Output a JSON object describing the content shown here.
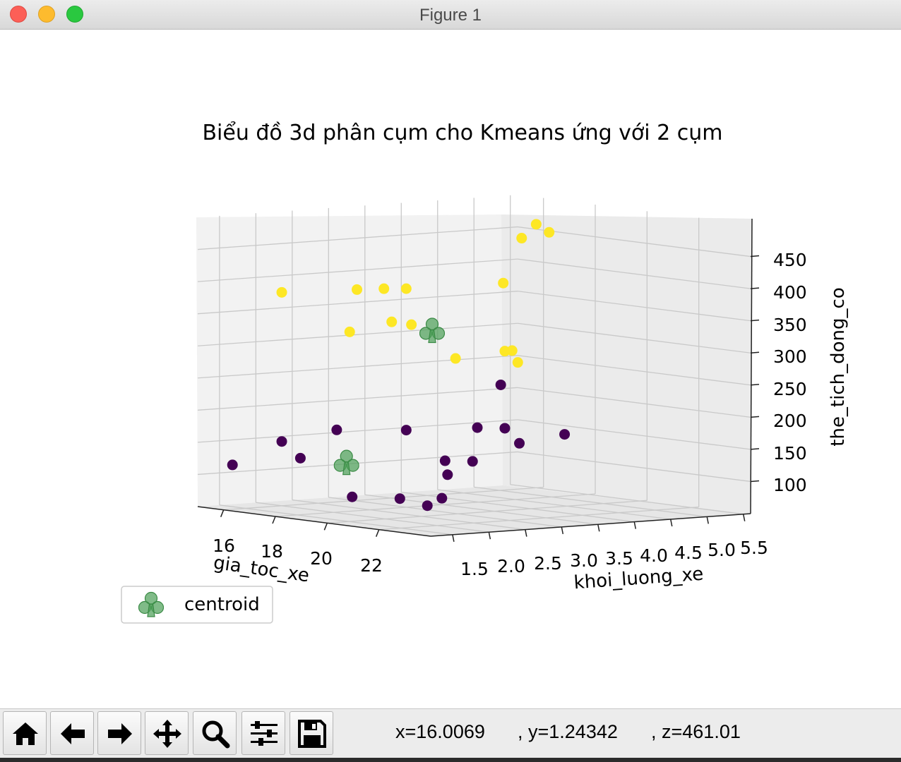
{
  "window": {
    "title": "Figure 1"
  },
  "colors": {
    "cluster_0": "#440154",
    "cluster_1": "#fde725",
    "centroid": "#4a9e55",
    "grid": "#c9c9c9",
    "pane": "#f2f2f2"
  },
  "chart_data": {
    "type": "scatter3d",
    "title": "Biểu đồ 3d phân cụm cho Kmeans ứng với 2 cụm",
    "xlabel": "gia_toc_xe",
    "ylabel": "khoi_luong_xe",
    "zlabel": "the_tich_dong_co",
    "x_ticks": [
      "16",
      "18",
      "20",
      "22"
    ],
    "y_ticks": [
      "1.5",
      "2.0",
      "2.5",
      "3.0",
      "3.5",
      "4.0",
      "4.5",
      "5.0",
      "5.5"
    ],
    "z_ticks": [
      "100",
      "150",
      "200",
      "250",
      "300",
      "350",
      "400",
      "450"
    ],
    "xlim": [
      15,
      24
    ],
    "ylim": [
      1.2,
      5.6
    ],
    "zlim": [
      50,
      500
    ],
    "legend": {
      "label": "centroid",
      "location": "lower-left"
    },
    "centroids": [
      {
        "x": 19.0,
        "y": 3.0,
        "z": 330
      },
      {
        "x": 18.5,
        "y": 2.0,
        "z": 130
      }
    ],
    "series": [
      {
        "cluster": 1,
        "points": [
          {
            "x": 16.0,
            "y": 2.0,
            "z": 382
          },
          {
            "x": 17.5,
            "y": 2.5,
            "z": 390
          },
          {
            "x": 17.7,
            "y": 2.8,
            "z": 390
          },
          {
            "x": 18.0,
            "y": 3.0,
            "z": 390
          },
          {
            "x": 17.5,
            "y": 2.4,
            "z": 325
          },
          {
            "x": 18.0,
            "y": 2.8,
            "z": 340
          },
          {
            "x": 18.2,
            "y": 3.0,
            "z": 335
          },
          {
            "x": 19.5,
            "y": 3.8,
            "z": 400
          },
          {
            "x": 18.5,
            "y": 3.5,
            "z": 280
          },
          {
            "x": 19.0,
            "y": 4.0,
            "z": 290
          },
          {
            "x": 19.0,
            "y": 4.1,
            "z": 290
          },
          {
            "x": 19.5,
            "y": 4.0,
            "z": 275
          },
          {
            "x": 16.0,
            "y": 5.5,
            "z": 460
          },
          {
            "x": 16.5,
            "y": 5.5,
            "z": 450
          },
          {
            "x": 16.0,
            "y": 5.3,
            "z": 440
          }
        ]
      },
      {
        "cluster": 0,
        "points": [
          {
            "x": 18.0,
            "y": 4.3,
            "z": 230
          },
          {
            "x": 17.0,
            "y": 2.4,
            "z": 170
          },
          {
            "x": 18.0,
            "y": 3.0,
            "z": 170
          },
          {
            "x": 18.5,
            "y": 3.8,
            "z": 170
          },
          {
            "x": 19.0,
            "y": 4.0,
            "z": 170
          },
          {
            "x": 19.0,
            "y": 4.2,
            "z": 145
          },
          {
            "x": 16.0,
            "y": 2.0,
            "z": 150
          },
          {
            "x": 17.0,
            "y": 1.9,
            "z": 130
          },
          {
            "x": 19.5,
            "y": 3.0,
            "z": 130
          },
          {
            "x": 20.0,
            "y": 3.2,
            "z": 130
          },
          {
            "x": 21.0,
            "y": 2.5,
            "z": 120
          },
          {
            "x": 15.5,
            "y": 1.5,
            "z": 115
          },
          {
            "x": 18.5,
            "y": 5.0,
            "z": 150
          },
          {
            "x": 19.0,
            "y": 1.9,
            "z": 80
          },
          {
            "x": 20.0,
            "y": 2.2,
            "z": 80
          },
          {
            "x": 20.5,
            "y": 2.6,
            "z": 80
          },
          {
            "x": 20.5,
            "y": 2.4,
            "z": 70
          }
        ]
      }
    ]
  },
  "toolbar": {
    "buttons": [
      {
        "name": "home-button",
        "icon": "home-icon"
      },
      {
        "name": "back-button",
        "icon": "arrow-left-icon"
      },
      {
        "name": "forward-button",
        "icon": "arrow-right-icon"
      },
      {
        "name": "pan-button",
        "icon": "move-icon"
      },
      {
        "name": "zoom-button",
        "icon": "magnifier-icon"
      },
      {
        "name": "subplots-button",
        "icon": "sliders-icon"
      },
      {
        "name": "save-button",
        "icon": "floppy-disk-icon"
      }
    ],
    "coord_x": "x=16.0069",
    "coord_y": ", y=1.24342",
    "coord_z": ", z=461.01"
  }
}
